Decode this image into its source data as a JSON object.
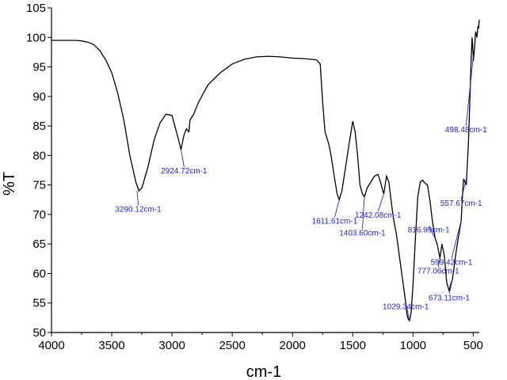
{
  "chart_data": {
    "type": "line",
    "title": "",
    "xlabel": "cm-1",
    "ylabel": "%T",
    "xlim": [
      4000,
      450
    ],
    "ylim": [
      50,
      105
    ],
    "x_reversed": true,
    "xticks": [
      4000,
      3500,
      3000,
      2500,
      2000,
      1500,
      1000,
      500
    ],
    "yticks": [
      50,
      55,
      60,
      65,
      70,
      75,
      80,
      85,
      90,
      95,
      100,
      105
    ],
    "grid": false,
    "line_color": "#000000",
    "annotation_color": "#2222dd",
    "series": [
      {
        "x": [
          4000,
          3900,
          3800,
          3750,
          3700,
          3650,
          3600,
          3550,
          3500,
          3450,
          3400,
          3350,
          3300,
          3275,
          3250,
          3200,
          3150,
          3100,
          3050,
          3000,
          2970,
          2950,
          2925,
          2900,
          2880,
          2860,
          2850,
          2820,
          2780,
          2700,
          2600,
          2500,
          2400,
          2300,
          2200,
          2100,
          2000,
          1900,
          1800,
          1770,
          1750,
          1730,
          1700,
          1680,
          1650,
          1630,
          1612,
          1590,
          1560,
          1530,
          1500,
          1480,
          1460,
          1440,
          1420,
          1403,
          1380,
          1350,
          1320,
          1290,
          1270,
          1250,
          1242,
          1220,
          1200,
          1180,
          1160,
          1140,
          1120,
          1100,
          1080,
          1060,
          1050,
          1040,
          1029,
          1015,
          1000,
          980,
          960,
          940,
          920,
          900,
          880,
          860,
          840,
          817,
          800,
          790,
          780,
          777,
          760,
          740,
          720,
          700,
          690,
          673,
          660,
          640,
          620,
          600,
          590,
          580,
          558,
          540,
          530,
          520,
          510,
          500,
          499,
          490,
          480,
          470,
          460,
          455,
          450
        ],
        "y": [
          99.5,
          99.5,
          99.5,
          99.4,
          99.2,
          98.8,
          97.8,
          96.2,
          94.0,
          90.5,
          86.0,
          80.0,
          75.5,
          74.0,
          74.5,
          78.0,
          82.5,
          85.5,
          87.0,
          86.8,
          84.5,
          83.0,
          81.0,
          83.5,
          84.5,
          84.0,
          86.0,
          87.0,
          89.0,
          92.0,
          94.0,
          95.5,
          96.3,
          96.7,
          96.8,
          96.7,
          96.5,
          96.4,
          96.2,
          95.5,
          89.0,
          84.0,
          82.0,
          80.0,
          76.0,
          73.5,
          72.5,
          74.0,
          78.0,
          82.0,
          85.8,
          84.0,
          80.0,
          75.0,
          73.5,
          73.0,
          74.5,
          75.5,
          76.5,
          76.8,
          75.5,
          74.0,
          73.5,
          76.5,
          75.5,
          72.0,
          69.0,
          67.0,
          64.0,
          61.0,
          58.0,
          55.0,
          53.0,
          52.3,
          52.0,
          53.5,
          58.0,
          66.0,
          73.0,
          75.5,
          75.8,
          75.3,
          75.0,
          72.5,
          69.0,
          66.0,
          65.0,
          64.0,
          63.0,
          62.5,
          65.0,
          63.0,
          58.5,
          57.0,
          58.0,
          59.0,
          61.0,
          64.0,
          66.5,
          69.0,
          73.0,
          76.0,
          75.0,
          82.0,
          88.0,
          95.0,
          100.0,
          97.0,
          96.0,
          98.0,
          101.0,
          100.0,
          102.0,
          101.5,
          103.0
        ]
      }
    ],
    "annotations": [
      {
        "text": "3290.12cm-1",
        "x": 3290.12,
        "y": 74.0,
        "lx": 3280,
        "ly": 71.0
      },
      {
        "text": "2924.72cm-1",
        "x": 2924.72,
        "y": 81.0,
        "lx": 2900,
        "ly": 77.5
      },
      {
        "text": "1611.61cm-1",
        "x": 1611.61,
        "y": 72.5,
        "lx": 1650,
        "ly": 69.0
      },
      {
        "text": "1403.60cm-1",
        "x": 1403.6,
        "y": 73.0,
        "lx": 1420,
        "ly": 67.0
      },
      {
        "text": "1242.08cm-1",
        "x": 1242.08,
        "y": 73.5,
        "lx": 1290,
        "ly": 70.0
      },
      {
        "text": "1029.34cm-1",
        "x": 1029.34,
        "y": 52.0,
        "lx": 1060,
        "ly": 54.5
      },
      {
        "text": "816.99cm-1",
        "x": 816.99,
        "y": 66.0,
        "lx": 870,
        "ly": 67.5
      },
      {
        "text": "777.06cm-1",
        "x": 777.06,
        "y": 62.5,
        "lx": 790,
        "ly": 60.5
      },
      {
        "text": "673.11cm-1",
        "x": 673.11,
        "y": 59.0,
        "lx": 700,
        "ly": 56.0
      },
      {
        "text": "599.42cm-1",
        "x": 599.42,
        "y": 69.0,
        "lx": 680,
        "ly": 62.0
      },
      {
        "text": "557.67cm-1",
        "x": 557.67,
        "y": 76.0,
        "lx": 600,
        "ly": 72.0
      },
      {
        "text": "498.48cm-1",
        "x": 498.48,
        "y": 97.0,
        "lx": 560,
        "ly": 84.5
      }
    ]
  }
}
